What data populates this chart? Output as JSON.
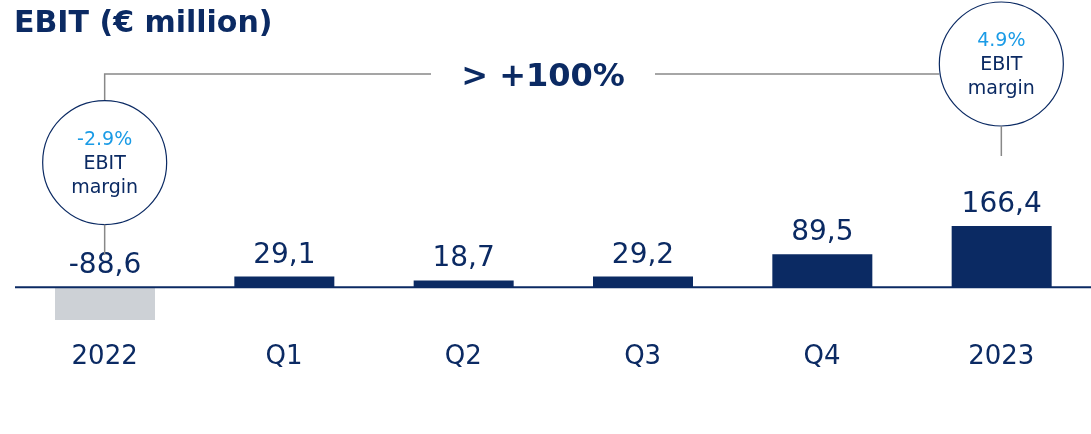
{
  "chart_data": {
    "type": "bar",
    "title": "EBIT (€ million)",
    "categories": [
      "2022",
      "Q1",
      "Q2",
      "Q3",
      "Q4",
      "2023"
    ],
    "values": [
      -88.6,
      29.1,
      18.7,
      29.2,
      89.5,
      166.4
    ],
    "colors": [
      "#cdd1d6",
      "#0b2a63",
      "#0b2a63",
      "#0b2a63",
      "#0b2a63",
      "#0b2a63"
    ],
    "value_labels": [
      "-88,6",
      "29,1",
      "18,7",
      "29,2",
      "89,5",
      "166,4"
    ],
    "annotations": [
      "-2.9% EBIT margin",
      "> +100%",
      "4.9% EBIT margin"
    ],
    "grid": false,
    "legend": false
  }
}
